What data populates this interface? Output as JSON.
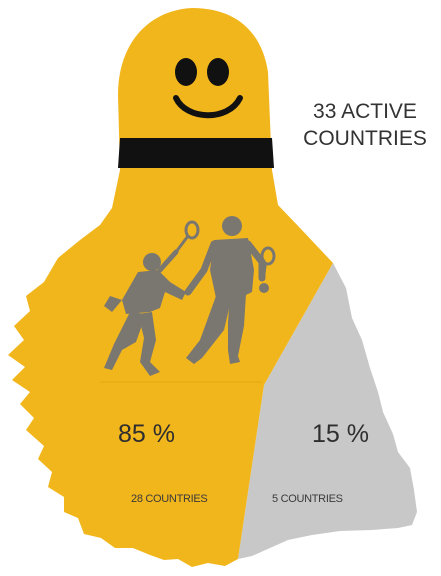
{
  "colors": {
    "active": "#f2b61d",
    "inactive": "#c8c8c8",
    "band": "#111111",
    "face": "#111111",
    "players": "#7a7670"
  },
  "icons": [
    "smiley-face",
    "badminton-players-icon"
  ],
  "chart_data": {
    "type": "pie",
    "headline": {
      "line1": "33 ACTIVE",
      "line2": "COUNTRIES"
    },
    "slices": [
      {
        "value": 85,
        "label": "85 %",
        "count_label": "28 COUNTRIES",
        "color": "#f2b61d"
      },
      {
        "value": 15,
        "label": "15 %",
        "count_label": "5 COUNTRIES",
        "color": "#c8c8c8"
      }
    ]
  }
}
